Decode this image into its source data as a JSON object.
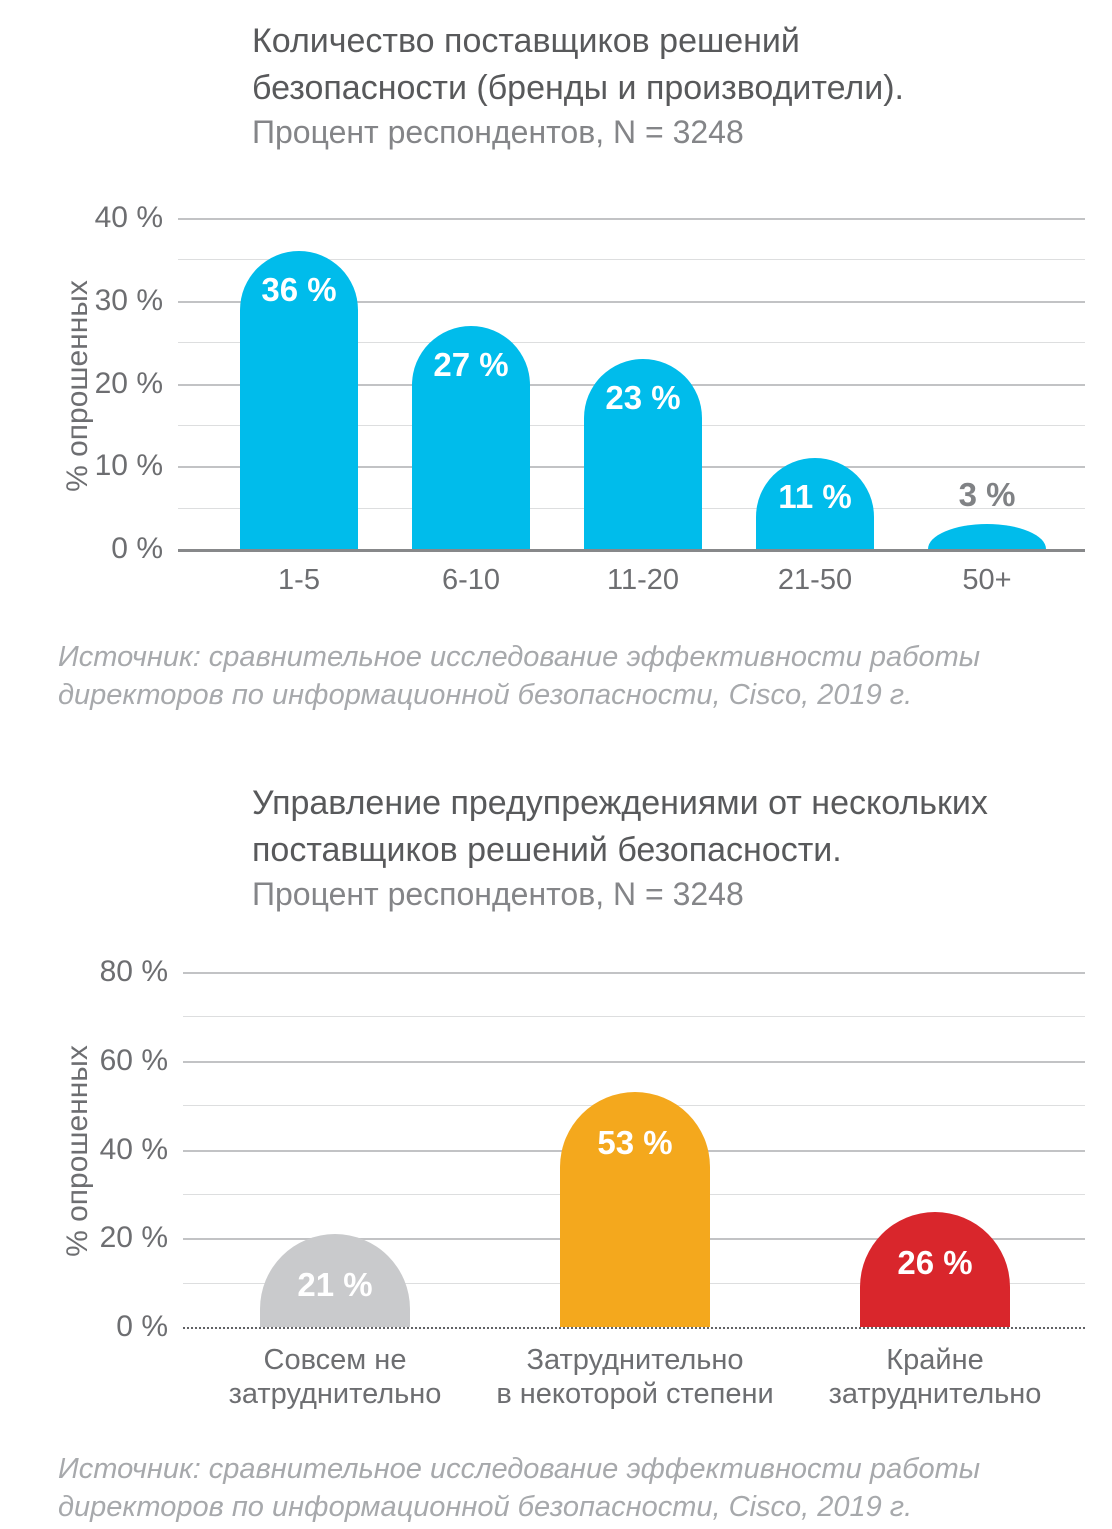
{
  "chart_data": [
    {
      "type": "bar",
      "title": "Количество поставщиков решений\nбезопасности (бренды и производители).",
      "subtitle": "Процент респондентов, N = 3248",
      "ylabel": "% опрошенных",
      "xlabel": "",
      "categories": [
        "1-5",
        "6-10",
        "11-20",
        "21-50",
        "50+"
      ],
      "values": [
        36,
        27,
        23,
        11,
        3
      ],
      "value_labels": [
        "36 %",
        "27 %",
        "23 %",
        "11 %",
        "3 %"
      ],
      "ytick_labels": [
        "40 %",
        "30 %",
        "20 %",
        "10 %",
        "0 %"
      ],
      "ylim": [
        0,
        40
      ],
      "gridline_step": 5,
      "major_tick_step": 10,
      "grid": "horizontal",
      "legend": "none",
      "bar_colors": [
        "#00BCEB",
        "#00BCEB",
        "#00BCEB",
        "#00BCEB",
        "#00BCEB"
      ],
      "source": "Источник: сравнительное исследование эффективности работы\nдиректоров по информационной безопасности, Cisco, 2019 г."
    },
    {
      "type": "bar",
      "title": "Управление предупреждениями от нескольких\nпоставщиков решений безопасности.",
      "subtitle": "Процент респондентов, N = 3248",
      "ylabel": "% опрошенных",
      "xlabel": "",
      "categories": [
        "Совсем не\nзатруднительно",
        "Затруднительно\nв некоторой степени",
        "Крайне\nзатруднительно"
      ],
      "values": [
        21,
        53,
        26
      ],
      "value_labels": [
        "21 %",
        "53 %",
        "26 %"
      ],
      "ytick_labels": [
        "80 %",
        "60 %",
        "40 %",
        "20 %",
        "0 %"
      ],
      "ylim": [
        0,
        80
      ],
      "gridline_step": 10,
      "major_tick_step": 20,
      "grid": "horizontal",
      "legend": "none",
      "bar_colors": [
        "#C9CACC",
        "#F4A81D",
        "#D9262C"
      ],
      "source": "Источник: сравнительное исследование эффективности работы\nдиректоров по информационной безопасности, Cisco, 2019 г."
    }
  ],
  "colors": {
    "accent_blue": "#00BCEB",
    "accent_orange": "#F4A81D",
    "accent_red": "#D9262C",
    "neutral_bar": "#C9CACC",
    "title_text": "#58595B",
    "axis_text": "#6D6E71",
    "source_text": "#A7A9AC"
  }
}
